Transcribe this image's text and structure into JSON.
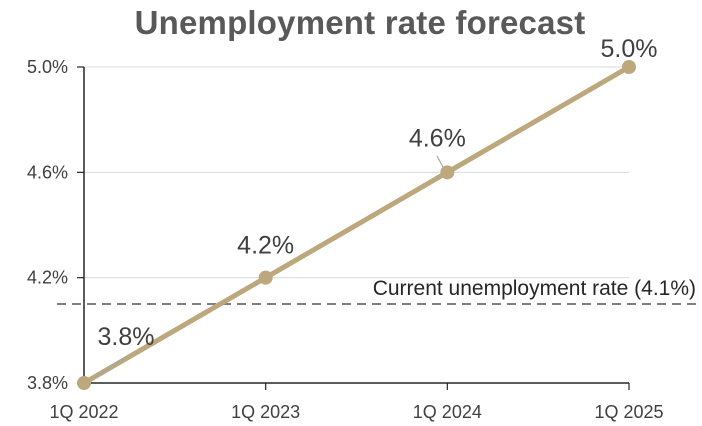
{
  "chart_data": {
    "type": "line",
    "title": "Unemployment rate forecast",
    "xlabel": "",
    "ylabel": "",
    "categories": [
      "1Q 2022",
      "1Q 2023",
      "1Q 2024",
      "1Q 2025"
    ],
    "series": [
      {
        "values": [
          3.8,
          4.2,
          4.6,
          5.0
        ],
        "color": "#bca87c"
      }
    ],
    "data_labels": [
      "3.8%",
      "4.2%",
      "4.6%",
      "5.0%"
    ],
    "ylim": [
      3.8,
      5.0
    ],
    "y_ticks": [
      3.8,
      4.2,
      4.6,
      5.0
    ],
    "y_tick_labels": [
      "3.8%",
      "4.2%",
      "4.6%",
      "5.0%"
    ],
    "reference_line": {
      "value": 4.1,
      "label": "Current unemployment rate (4.1%)",
      "style": "dashed",
      "color": "#7f7f7f"
    },
    "grid": {
      "horizontal": true,
      "vertical": false
    },
    "legend": "none"
  }
}
